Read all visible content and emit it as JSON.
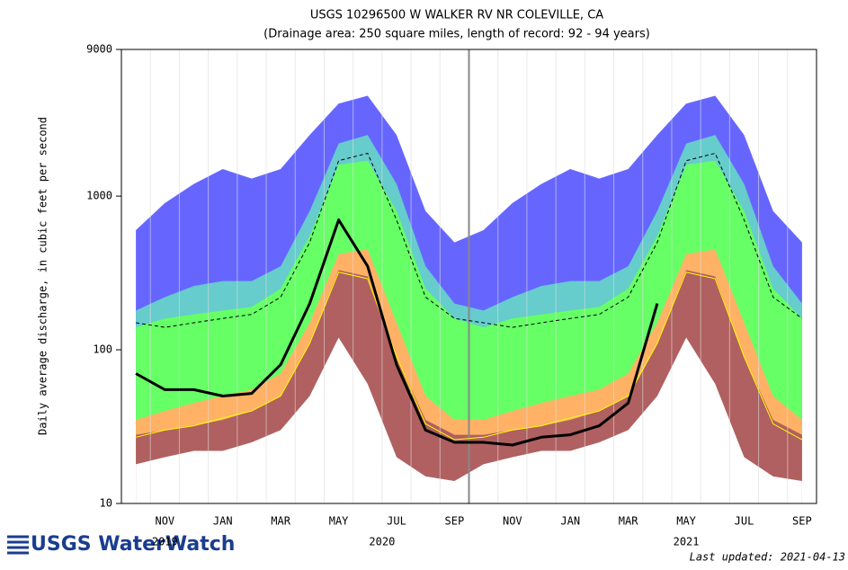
{
  "chart_data": {
    "type": "area",
    "title": "USGS 10296500 W WALKER RV NR COLEVILLE, CA",
    "subtitle": "(Drainage area: 250 square miles, length of record: 92 - 94 years)",
    "y_label": "Daily average discharge, in cubic feet per second",
    "log_scale": true,
    "ylim": [
      10,
      9000
    ],
    "yticks": [
      10,
      100,
      1000,
      9000
    ],
    "categories": [
      null,
      "NOV",
      null,
      "JAN",
      null,
      "MAR",
      null,
      "MAY",
      null,
      "JUL",
      null,
      "SEP",
      null,
      "NOV",
      null,
      "JAN",
      null,
      "MAR",
      null,
      "MAY",
      null,
      "JUL",
      null,
      "SEP"
    ],
    "year_labels": [
      "2019",
      "2020",
      "2021"
    ],
    "areas": [
      {
        "color": "#6666ff",
        "values": [
          600,
          900,
          1200,
          1500,
          1300,
          1500,
          2500,
          4000,
          4500,
          2500,
          800,
          500,
          600,
          900,
          1200,
          1500,
          1300,
          1500,
          2500,
          4000,
          4500,
          2500,
          800,
          500
        ]
      },
      {
        "color": "#66cccc",
        "values": [
          180,
          220,
          260,
          280,
          280,
          350,
          800,
          2200,
          2500,
          1200,
          350,
          200,
          180,
          220,
          260,
          280,
          280,
          350,
          800,
          2200,
          2500,
          1200,
          350,
          200
        ]
      },
      {
        "color": "#66ff66",
        "values": [
          140,
          160,
          170,
          180,
          190,
          250,
          550,
          1600,
          1700,
          800,
          250,
          160,
          140,
          160,
          170,
          180,
          190,
          250,
          550,
          1600,
          1700,
          800,
          250,
          160
        ]
      },
      {
        "color": "#ffb266",
        "values": [
          35,
          40,
          45,
          50,
          55,
          70,
          150,
          420,
          450,
          150,
          50,
          35,
          35,
          40,
          45,
          50,
          55,
          70,
          150,
          420,
          450,
          150,
          50,
          35
        ]
      },
      {
        "color": "#b06060",
        "values": [
          28,
          30,
          32,
          35,
          40,
          50,
          110,
          330,
          300,
          90,
          35,
          28,
          28,
          30,
          32,
          35,
          40,
          50,
          110,
          330,
          300,
          90,
          35,
          28
        ]
      },
      {
        "color": "#ffffff",
        "values": [
          18,
          20,
          22,
          22,
          25,
          30,
          50,
          120,
          60,
          20,
          15,
          14,
          18,
          20,
          22,
          22,
          25,
          30,
          50,
          120,
          60,
          20,
          15,
          14
        ]
      }
    ],
    "lines": [
      {
        "color": "#000000",
        "dashed": true,
        "width": 1,
        "values": [
          150,
          140,
          150,
          160,
          170,
          220,
          500,
          1700,
          1900,
          700,
          220,
          160,
          150,
          140,
          150,
          160,
          170,
          220,
          500,
          1700,
          1900,
          700,
          220,
          160
        ]
      },
      {
        "color": "#ffff00",
        "dashed": false,
        "width": 1,
        "values": [
          27,
          30,
          32,
          36,
          40,
          50,
          110,
          320,
          290,
          90,
          33,
          26,
          27,
          30,
          32,
          36,
          40,
          50,
          110,
          320,
          290,
          90,
          33,
          26
        ]
      },
      {
        "color": "#000000",
        "dashed": false,
        "width": 3,
        "values": [
          70,
          55,
          55,
          50,
          52,
          80,
          200,
          700,
          350,
          80,
          30,
          25,
          25,
          24,
          27,
          28,
          32,
          45,
          200,
          null,
          null,
          null,
          null,
          null
        ]
      }
    ],
    "logo": "USGS WaterWatch",
    "last_updated": "Last updated: 2021-04-13"
  }
}
